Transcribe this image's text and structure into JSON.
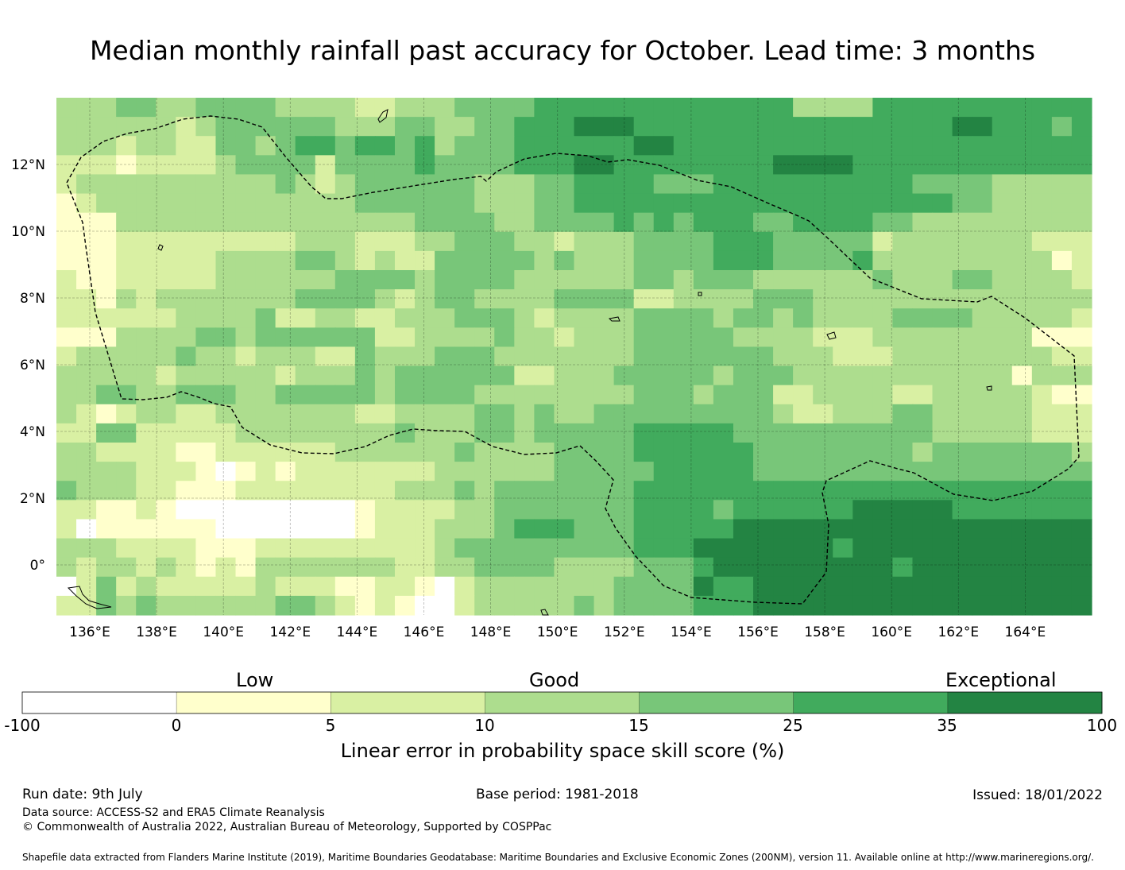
{
  "title": "Median monthly rainfall past accuracy for October. Lead time: 3 months",
  "map": {
    "lon_labels": [
      "136°E",
      "138°E",
      "140°E",
      "142°E",
      "144°E",
      "146°E",
      "148°E",
      "150°E",
      "152°E",
      "154°E",
      "156°E",
      "158°E",
      "160°E",
      "162°E",
      "164°E"
    ],
    "lat_labels": [
      "12°N",
      "10°N",
      "8°N",
      "6°N",
      "4°N",
      "2°N",
      "0°"
    ]
  },
  "legend": {
    "categories": [
      "Low",
      "Good",
      "Exceptional"
    ],
    "bounds": [
      "-100",
      "0",
      "5",
      "10",
      "15",
      "25",
      "35",
      "100"
    ],
    "colors": [
      "#ffffff",
      "#ffffcc",
      "#d9f0a3",
      "#addd8e",
      "#78c679",
      "#41ab5d",
      "#238443"
    ],
    "title": "Linear error in probability space skill score (%)"
  },
  "footer": {
    "run_date": "Run date: 9th July",
    "base_period": "Base period: 1981-2018",
    "issued": "Issued: 18/01/2022",
    "data_source": "Data source: ACCESS-S2 and ERA5 Climate Reanalysis",
    "copyright": "© Commonwealth of Australia 2022, Australian Bureau of Meteorology, Supported by COSPPac",
    "shapefile": "Shapefile data extracted from Flanders Marine Institute (2019), Maritime Boundaries Geodatabase: Maritime Boundaries and Exclusive Economic Zones (200NM), version 11. Available online at http://www.marineregions.org/."
  }
}
